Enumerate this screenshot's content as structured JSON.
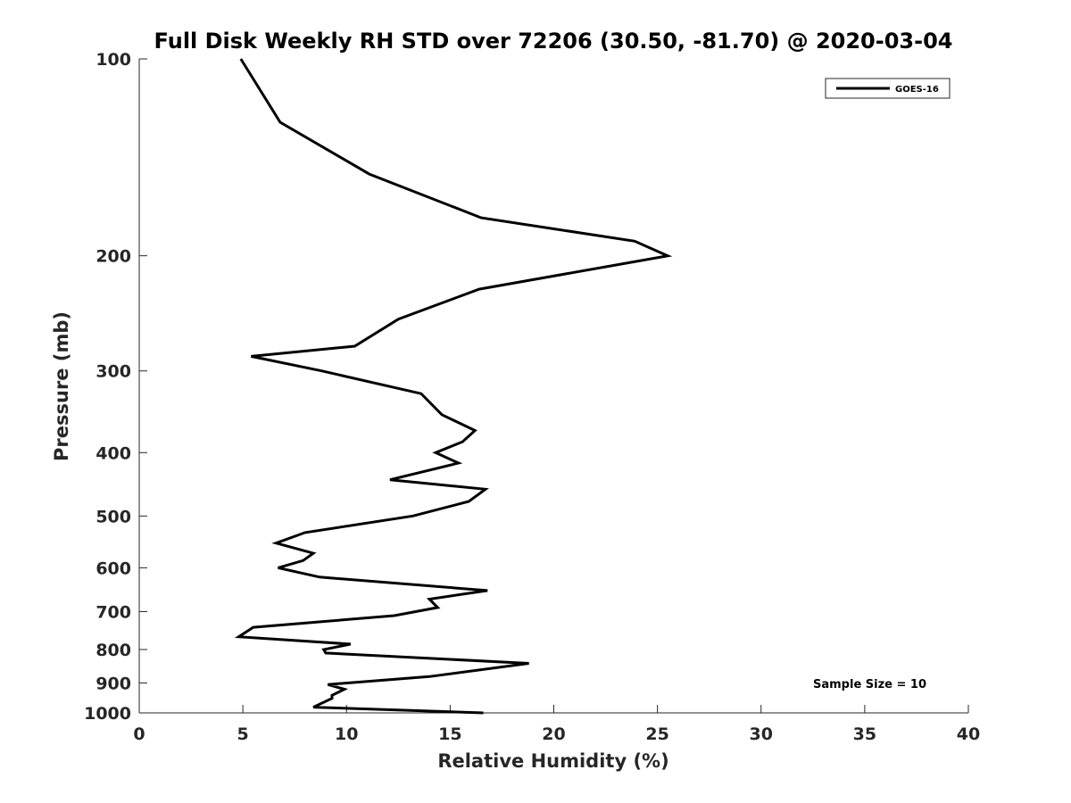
{
  "chart_data": {
    "type": "line",
    "title": "Full Disk Weekly RH STD over 72206 (30.50, -81.70) @ 2020-03-04",
    "xlabel": "Relative Humidity (%)",
    "ylabel": "Pressure (mb)",
    "xlim": [
      0,
      40
    ],
    "ylim": [
      100,
      1000
    ],
    "y_scale": "log",
    "y_reversed": true,
    "x_ticks": [
      0,
      5,
      10,
      15,
      20,
      25,
      30,
      35,
      40
    ],
    "y_ticks": [
      100,
      200,
      300,
      400,
      500,
      600,
      700,
      800,
      900,
      1000
    ],
    "grid": false,
    "legend_position": "top-right",
    "annotation": "Sample Size = 10",
    "series": [
      {
        "name": "GOES-16",
        "color": "#000000",
        "x": [
          4.9,
          6.8,
          11.1,
          16.5,
          23.9,
          25.5,
          16.4,
          12.5,
          10.4,
          5.4,
          8.8,
          13.6,
          14.6,
          16.2,
          15.6,
          14.3,
          15.4,
          12.1,
          16.7,
          15.9,
          13.2,
          8.0,
          6.6,
          8.4,
          7.9,
          6.7,
          8.7,
          16.8,
          14.0,
          14.4,
          12.3,
          5.5,
          4.8,
          10.2,
          8.9,
          9.0,
          18.8,
          14.0,
          9.1,
          9.9,
          9.3,
          9.3,
          8.4,
          16.6
        ]
      }
    ],
    "pressure": [
      100,
      125,
      150,
      175,
      190,
      200,
      225,
      250,
      275,
      285,
      300,
      325,
      350,
      370,
      385,
      400,
      415,
      440,
      455,
      475,
      500,
      530,
      550,
      570,
      585,
      600,
      620,
      650,
      670,
      690,
      710,
      740,
      765,
      785,
      800,
      810,
      840,
      880,
      905,
      920,
      940,
      950,
      980,
      1000
    ]
  }
}
